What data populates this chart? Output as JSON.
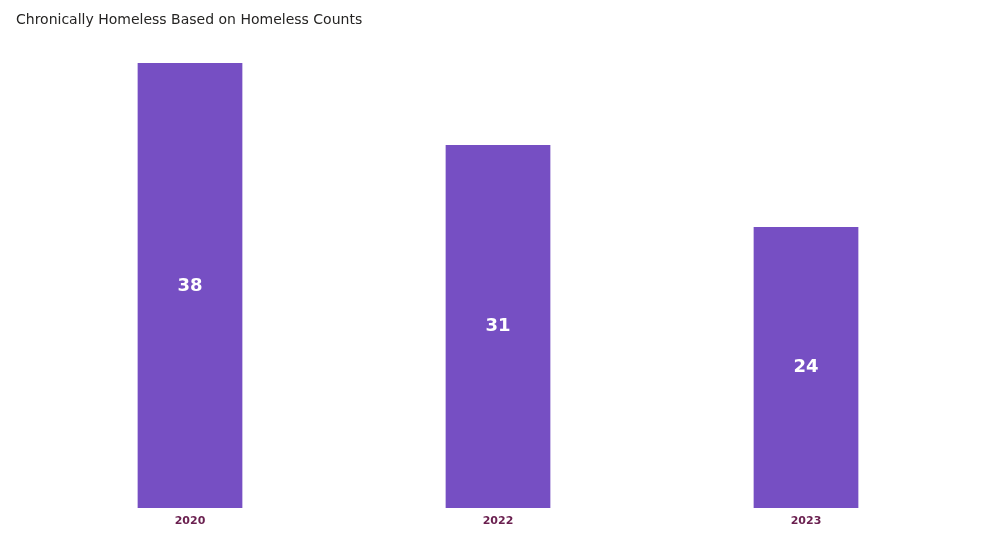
{
  "chart_data": {
    "type": "bar",
    "title": "Chronically Homeless Based on Homeless Counts",
    "categories": [
      "2020",
      "2022",
      "2023"
    ],
    "values": [
      38,
      31,
      24
    ],
    "color": "#764fc3",
    "data_labels": true,
    "grid": false
  }
}
